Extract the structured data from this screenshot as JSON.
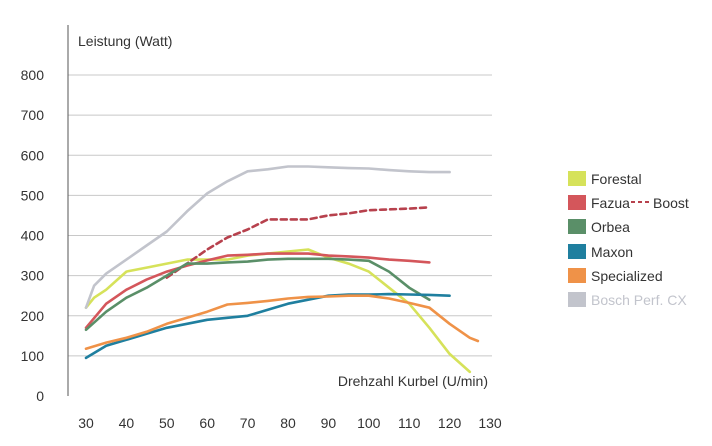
{
  "chart_data": {
    "type": "line",
    "ylabel": "Leistung (Watt)",
    "xlabel": "Drehzahl Kurbel (U/min)",
    "xlim": [
      30,
      130
    ],
    "ylim": [
      0,
      800
    ],
    "x_ticks": [
      "30",
      "40",
      "50",
      "60",
      "70",
      "80",
      "90",
      "100",
      "110",
      "120",
      "130"
    ],
    "y_ticks": [
      "0",
      "100",
      "200",
      "300",
      "400",
      "500",
      "600",
      "700",
      "800"
    ],
    "grid": "horizontal",
    "legend_position": "right",
    "series": [
      {
        "name": "Forestal",
        "color": "#d6e25a",
        "dash": false,
        "x": [
          30,
          32,
          35,
          40,
          45,
          50,
          55,
          60,
          65,
          70,
          75,
          80,
          85,
          90,
          95,
          100,
          105,
          110,
          115,
          120,
          125
        ],
        "y": [
          220,
          245,
          265,
          310,
          320,
          330,
          340,
          340,
          340,
          350,
          355,
          360,
          365,
          345,
          330,
          310,
          270,
          230,
          170,
          105,
          60
        ]
      },
      {
        "name": "Fazua",
        "color": "#d4565b",
        "dash": false,
        "x": [
          30,
          35,
          40,
          45,
          50,
          55,
          60,
          65,
          70,
          75,
          80,
          85,
          90,
          95,
          100,
          105,
          110,
          115
        ],
        "y": [
          170,
          230,
          265,
          290,
          310,
          325,
          338,
          350,
          352,
          355,
          355,
          355,
          350,
          348,
          345,
          340,
          337,
          333
        ]
      },
      {
        "name": "Boost",
        "color": "#b7414d",
        "dash": true,
        "x": [
          50,
          55,
          60,
          65,
          70,
          75,
          80,
          85,
          90,
          95,
          100,
          105,
          110,
          115
        ],
        "y": [
          295,
          330,
          365,
          395,
          415,
          440,
          440,
          440,
          450,
          455,
          463,
          465,
          467,
          470
        ]
      },
      {
        "name": "Orbea",
        "color": "#5a8f68",
        "dash": false,
        "x": [
          30,
          35,
          40,
          45,
          50,
          55,
          60,
          65,
          70,
          75,
          80,
          85,
          90,
          95,
          100,
          105,
          110,
          115
        ],
        "y": [
          165,
          210,
          245,
          270,
          300,
          330,
          330,
          333,
          335,
          340,
          342,
          342,
          342,
          340,
          337,
          310,
          270,
          240
        ]
      },
      {
        "name": "Maxon",
        "color": "#1f7f9f",
        "dash": false,
        "x": [
          30,
          35,
          40,
          45,
          50,
          55,
          60,
          65,
          70,
          75,
          80,
          85,
          90,
          95,
          100,
          105,
          110,
          115,
          120
        ],
        "y": [
          95,
          125,
          140,
          155,
          170,
          180,
          190,
          195,
          200,
          215,
          230,
          240,
          250,
          253,
          253,
          254,
          253,
          252,
          250
        ]
      },
      {
        "name": "Specialized",
        "color": "#ef9248",
        "dash": false,
        "x": [
          30,
          35,
          40,
          45,
          50,
          55,
          60,
          65,
          70,
          75,
          80,
          85,
          90,
          95,
          100,
          105,
          110,
          115,
          120,
          125,
          127
        ],
        "y": [
          118,
          133,
          145,
          160,
          180,
          195,
          210,
          228,
          232,
          237,
          243,
          247,
          248,
          250,
          250,
          243,
          232,
          220,
          180,
          145,
          137
        ]
      },
      {
        "name": "Bosch Perf. CX",
        "color": "#c2c4cc",
        "dash": false,
        "x": [
          30,
          32,
          35,
          40,
          45,
          50,
          55,
          60,
          65,
          70,
          75,
          80,
          85,
          90,
          95,
          100,
          105,
          110,
          115,
          120
        ],
        "y": [
          220,
          275,
          305,
          340,
          375,
          410,
          460,
          505,
          535,
          560,
          565,
          572,
          572,
          570,
          568,
          567,
          563,
          560,
          558,
          558
        ]
      }
    ]
  },
  "legend": {
    "forestal": "Forestal",
    "fazua": "Fazua",
    "boost": "Boost",
    "orbea": "Orbea",
    "maxon": "Maxon",
    "specialized": "Specialized",
    "bosch": "Bosch Perf. CX"
  }
}
